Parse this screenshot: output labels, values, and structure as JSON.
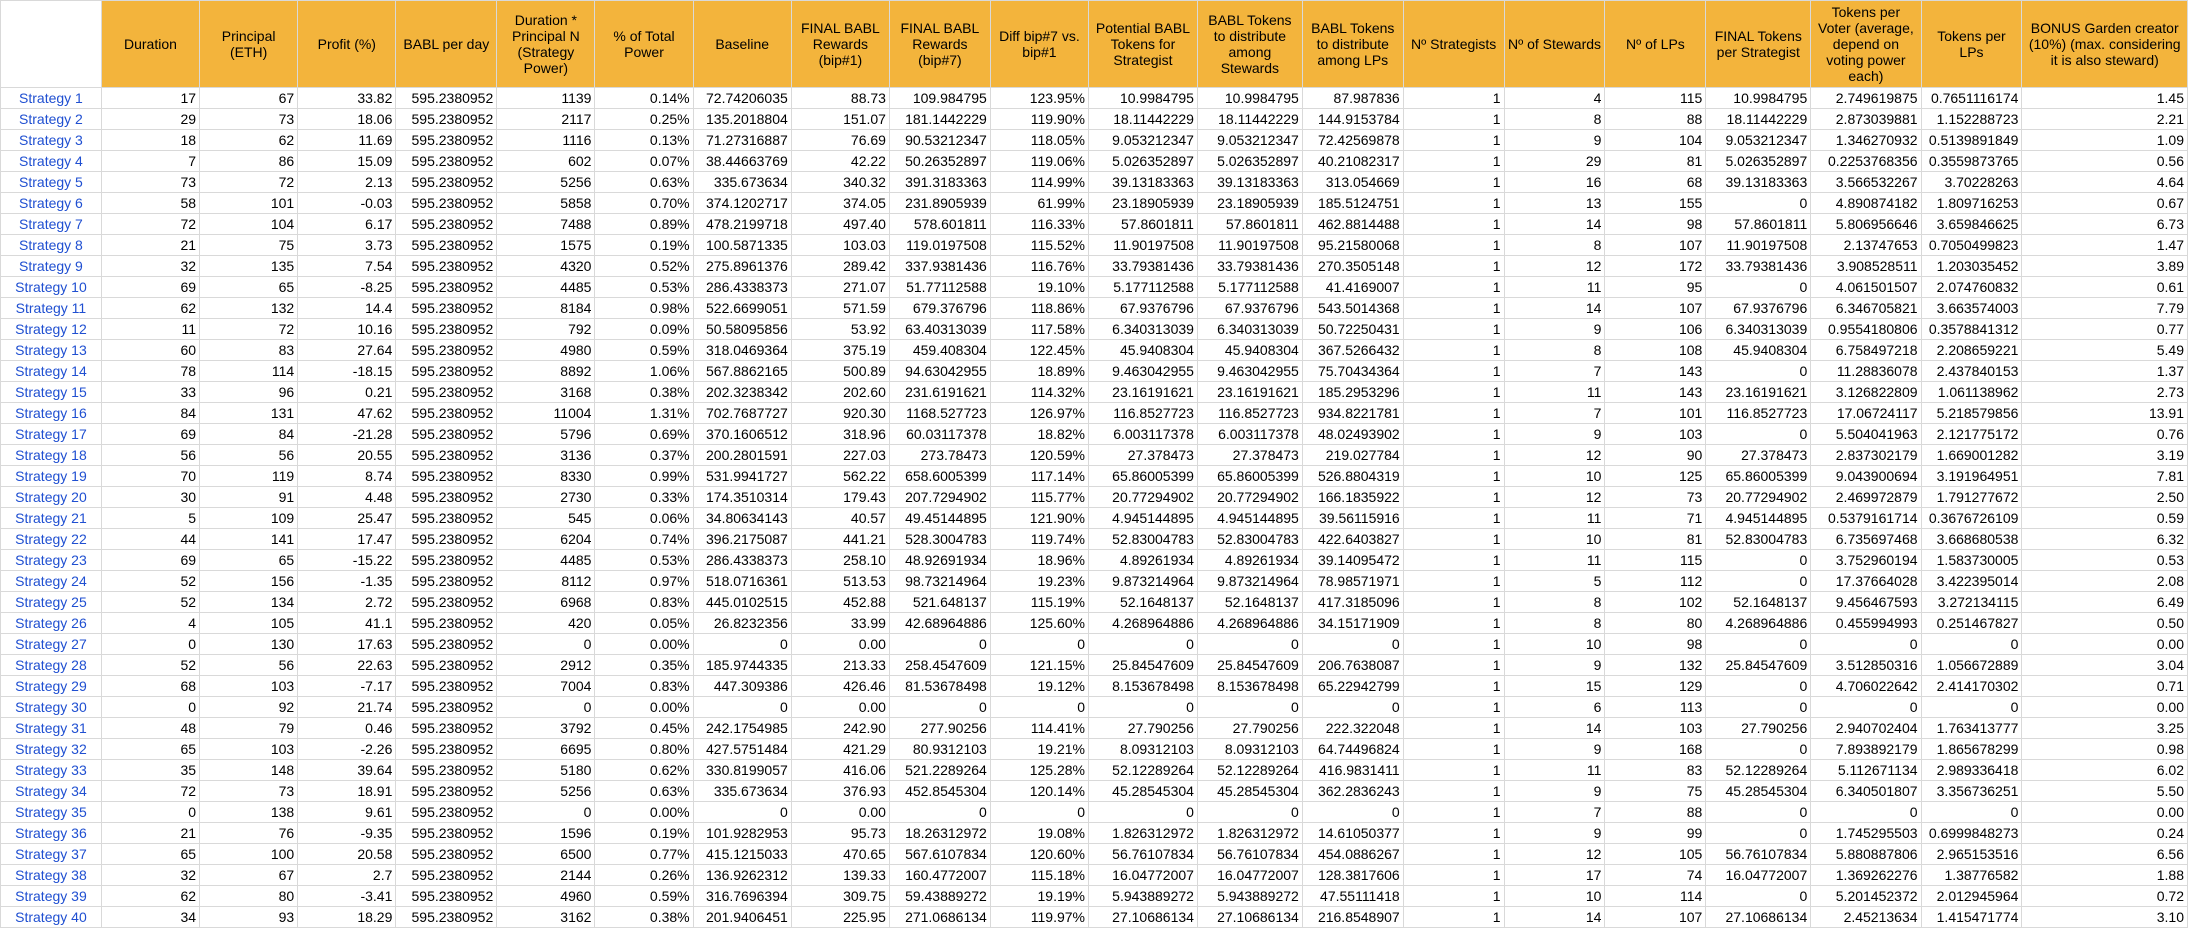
{
  "colors": {
    "header_bg": "#f3b43c",
    "link_text": "#1f4fd1",
    "grid": "#d9d9d9"
  },
  "headers": [
    "",
    "Duration",
    "Principal (ETH)",
    "Profit (%)",
    "BABL per day",
    "Duration * Principal N (Strategy Power)",
    "% of Total Power",
    "Baseline",
    "FINAL BABL Rewards (bip#1)",
    "FINAL BABL Rewards (bip#7)",
    "Diff bip#7 vs. bip#1",
    "Potential BABL Tokens for Strategist",
    "BABL Tokens to distribute among Stewards",
    "BABL Tokens to distribute among LPs",
    "Nº Strategists",
    "Nº of Stewards",
    "Nº of LPs",
    "FINAL Tokens per Strategist",
    "Tokens per Voter (average, depend on voting power each)",
    "Tokens per LPs",
    "BONUS Garden creator (10%) (max. considering it is also steward)"
  ],
  "rows": [
    [
      "Strategy 1",
      "17",
      "67",
      "33.82",
      "595.2380952",
      "1139",
      "0.14%",
      "72.74206035",
      "88.73",
      "109.984795",
      "123.95%",
      "10.9984795",
      "10.9984795",
      "87.987836",
      "1",
      "4",
      "115",
      "10.9984795",
      "2.749619875",
      "0.7651116174",
      "1.45"
    ],
    [
      "Strategy 2",
      "29",
      "73",
      "18.06",
      "595.2380952",
      "2117",
      "0.25%",
      "135.2018804",
      "151.07",
      "181.1442229",
      "119.90%",
      "18.11442229",
      "18.11442229",
      "144.9153784",
      "1",
      "8",
      "88",
      "18.11442229",
      "2.873039881",
      "1.152288723",
      "2.21"
    ],
    [
      "Strategy 3",
      "18",
      "62",
      "11.69",
      "595.2380952",
      "1116",
      "0.13%",
      "71.27316887",
      "76.69",
      "90.53212347",
      "118.05%",
      "9.053212347",
      "9.053212347",
      "72.42569878",
      "1",
      "9",
      "104",
      "9.053212347",
      "1.346270932",
      "0.5139891849",
      "1.09"
    ],
    [
      "Strategy 4",
      "7",
      "86",
      "15.09",
      "595.2380952",
      "602",
      "0.07%",
      "38.44663769",
      "42.22",
      "50.26352897",
      "119.06%",
      "5.026352897",
      "5.026352897",
      "40.21082317",
      "1",
      "29",
      "81",
      "5.026352897",
      "0.2253768356",
      "0.3559873765",
      "0.56"
    ],
    [
      "Strategy 5",
      "73",
      "72",
      "2.13",
      "595.2380952",
      "5256",
      "0.63%",
      "335.673634",
      "340.32",
      "391.3183363",
      "114.99%",
      "39.13183363",
      "39.13183363",
      "313.054669",
      "1",
      "16",
      "68",
      "39.13183363",
      "3.566532267",
      "3.70228263",
      "4.64"
    ],
    [
      "Strategy 6",
      "58",
      "101",
      "-0.03",
      "595.2380952",
      "5858",
      "0.70%",
      "374.1202717",
      "374.05",
      "231.8905939",
      "61.99%",
      "23.18905939",
      "23.18905939",
      "185.5124751",
      "1",
      "13",
      "155",
      "0",
      "4.890874182",
      "1.809716253",
      "0.67"
    ],
    [
      "Strategy 7",
      "72",
      "104",
      "6.17",
      "595.2380952",
      "7488",
      "0.89%",
      "478.2199718",
      "497.40",
      "578.601811",
      "116.33%",
      "57.8601811",
      "57.8601811",
      "462.8814488",
      "1",
      "14",
      "98",
      "57.8601811",
      "5.806956646",
      "3.659846625",
      "6.73"
    ],
    [
      "Strategy 8",
      "21",
      "75",
      "3.73",
      "595.2380952",
      "1575",
      "0.19%",
      "100.5871335",
      "103.03",
      "119.0197508",
      "115.52%",
      "11.90197508",
      "11.90197508",
      "95.21580068",
      "1",
      "8",
      "107",
      "11.90197508",
      "2.13747653",
      "0.7050499823",
      "1.47"
    ],
    [
      "Strategy 9",
      "32",
      "135",
      "7.54",
      "595.2380952",
      "4320",
      "0.52%",
      "275.8961376",
      "289.42",
      "337.9381436",
      "116.76%",
      "33.79381436",
      "33.79381436",
      "270.3505148",
      "1",
      "12",
      "172",
      "33.79381436",
      "3.908528511",
      "1.203035452",
      "3.89"
    ],
    [
      "Strategy 10",
      "69",
      "65",
      "-8.25",
      "595.2380952",
      "4485",
      "0.53%",
      "286.4338373",
      "271.07",
      "51.77112588",
      "19.10%",
      "5.177112588",
      "5.177112588",
      "41.4169007",
      "1",
      "11",
      "95",
      "0",
      "4.061501507",
      "2.074760832",
      "0.61"
    ],
    [
      "Strategy 11",
      "62",
      "132",
      "14.4",
      "595.2380952",
      "8184",
      "0.98%",
      "522.6699051",
      "571.59",
      "679.376796",
      "118.86%",
      "67.9376796",
      "67.9376796",
      "543.5014368",
      "1",
      "14",
      "107",
      "67.9376796",
      "6.346705821",
      "3.663574003",
      "7.79"
    ],
    [
      "Strategy 12",
      "11",
      "72",
      "10.16",
      "595.2380952",
      "792",
      "0.09%",
      "50.58095856",
      "53.92",
      "63.40313039",
      "117.58%",
      "6.340313039",
      "6.340313039",
      "50.72250431",
      "1",
      "9",
      "106",
      "6.340313039",
      "0.9554180806",
      "0.3578841312",
      "0.77"
    ],
    [
      "Strategy 13",
      "60",
      "83",
      "27.64",
      "595.2380952",
      "4980",
      "0.59%",
      "318.0469364",
      "375.19",
      "459.408304",
      "122.45%",
      "45.9408304",
      "45.9408304",
      "367.5266432",
      "1",
      "8",
      "108",
      "45.9408304",
      "6.758497218",
      "2.208659221",
      "5.49"
    ],
    [
      "Strategy 14",
      "78",
      "114",
      "-18.15",
      "595.2380952",
      "8892",
      "1.06%",
      "567.8862165",
      "500.89",
      "94.63042955",
      "18.89%",
      "9.463042955",
      "9.463042955",
      "75.70434364",
      "1",
      "7",
      "143",
      "0",
      "11.28836078",
      "2.437840153",
      "1.37"
    ],
    [
      "Strategy 15",
      "33",
      "96",
      "0.21",
      "595.2380952",
      "3168",
      "0.38%",
      "202.3238342",
      "202.60",
      "231.6191621",
      "114.32%",
      "23.16191621",
      "23.16191621",
      "185.2953296",
      "1",
      "11",
      "143",
      "23.16191621",
      "3.126822809",
      "1.061138962",
      "2.73"
    ],
    [
      "Strategy 16",
      "84",
      "131",
      "47.62",
      "595.2380952",
      "11004",
      "1.31%",
      "702.7687727",
      "920.30",
      "1168.527723",
      "126.97%",
      "116.8527723",
      "116.8527723",
      "934.8221781",
      "1",
      "7",
      "101",
      "116.8527723",
      "17.06724117",
      "5.218579856",
      "13.91"
    ],
    [
      "Strategy 17",
      "69",
      "84",
      "-21.28",
      "595.2380952",
      "5796",
      "0.69%",
      "370.1606512",
      "318.96",
      "60.03117378",
      "18.82%",
      "6.003117378",
      "6.003117378",
      "48.02493902",
      "1",
      "9",
      "103",
      "0",
      "5.504041963",
      "2.121775172",
      "0.76"
    ],
    [
      "Strategy 18",
      "56",
      "56",
      "20.55",
      "595.2380952",
      "3136",
      "0.37%",
      "200.2801591",
      "227.03",
      "273.78473",
      "120.59%",
      "27.378473",
      "27.378473",
      "219.027784",
      "1",
      "12",
      "90",
      "27.378473",
      "2.837302179",
      "1.669001282",
      "3.19"
    ],
    [
      "Strategy 19",
      "70",
      "119",
      "8.74",
      "595.2380952",
      "8330",
      "0.99%",
      "531.9941727",
      "562.22",
      "658.6005399",
      "117.14%",
      "65.86005399",
      "65.86005399",
      "526.8804319",
      "1",
      "10",
      "125",
      "65.86005399",
      "9.043900694",
      "3.191964951",
      "7.81"
    ],
    [
      "Strategy 20",
      "30",
      "91",
      "4.48",
      "595.2380952",
      "2730",
      "0.33%",
      "174.3510314",
      "179.43",
      "207.7294902",
      "115.77%",
      "20.77294902",
      "20.77294902",
      "166.1835922",
      "1",
      "12",
      "73",
      "20.77294902",
      "2.469972879",
      "1.791277672",
      "2.50"
    ],
    [
      "Strategy 21",
      "5",
      "109",
      "25.47",
      "595.2380952",
      "545",
      "0.06%",
      "34.80634143",
      "40.57",
      "49.45144895",
      "121.90%",
      "4.945144895",
      "4.945144895",
      "39.56115916",
      "1",
      "11",
      "71",
      "4.945144895",
      "0.5379161714",
      "0.3676726109",
      "0.59"
    ],
    [
      "Strategy 22",
      "44",
      "141",
      "17.47",
      "595.2380952",
      "6204",
      "0.74%",
      "396.2175087",
      "441.21",
      "528.3004783",
      "119.74%",
      "52.83004783",
      "52.83004783",
      "422.6403827",
      "1",
      "10",
      "81",
      "52.83004783",
      "6.735697468",
      "3.668680538",
      "6.32"
    ],
    [
      "Strategy 23",
      "69",
      "65",
      "-15.22",
      "595.2380952",
      "4485",
      "0.53%",
      "286.4338373",
      "258.10",
      "48.92691934",
      "18.96%",
      "4.89261934",
      "4.89261934",
      "39.14095472",
      "1",
      "11",
      "115",
      "0",
      "3.752960194",
      "1.583730005",
      "0.53"
    ],
    [
      "Strategy 24",
      "52",
      "156",
      "-1.35",
      "595.2380952",
      "8112",
      "0.97%",
      "518.0716361",
      "513.53",
      "98.73214964",
      "19.23%",
      "9.873214964",
      "9.873214964",
      "78.98571971",
      "1",
      "5",
      "112",
      "0",
      "17.37664028",
      "3.422395014",
      "2.08"
    ],
    [
      "Strategy 25",
      "52",
      "134",
      "2.72",
      "595.2380952",
      "6968",
      "0.83%",
      "445.0102515",
      "452.88",
      "521.648137",
      "115.19%",
      "52.1648137",
      "52.1648137",
      "417.3185096",
      "1",
      "8",
      "102",
      "52.1648137",
      "9.456467593",
      "3.272134115",
      "6.49"
    ],
    [
      "Strategy 26",
      "4",
      "105",
      "41.1",
      "595.2380952",
      "420",
      "0.05%",
      "26.8232356",
      "33.99",
      "42.68964886",
      "125.60%",
      "4.268964886",
      "4.268964886",
      "34.15171909",
      "1",
      "8",
      "80",
      "4.268964886",
      "0.455994993",
      "0.251467827",
      "0.50"
    ],
    [
      "Strategy 27",
      "0",
      "130",
      "17.63",
      "595.2380952",
      "0",
      "0.00%",
      "0",
      "0.00",
      "0",
      "0",
      "0",
      "0",
      "0",
      "1",
      "10",
      "98",
      "0",
      "0",
      "0",
      "0.00"
    ],
    [
      "Strategy 28",
      "52",
      "56",
      "22.63",
      "595.2380952",
      "2912",
      "0.35%",
      "185.9744335",
      "213.33",
      "258.4547609",
      "121.15%",
      "25.84547609",
      "25.84547609",
      "206.7638087",
      "1",
      "9",
      "132",
      "25.84547609",
      "3.512850316",
      "1.056672889",
      "3.04"
    ],
    [
      "Strategy 29",
      "68",
      "103",
      "-7.17",
      "595.2380952",
      "7004",
      "0.83%",
      "447.309386",
      "426.46",
      "81.53678498",
      "19.12%",
      "8.153678498",
      "8.153678498",
      "65.22942799",
      "1",
      "15",
      "129",
      "0",
      "4.706022642",
      "2.414170302",
      "0.71"
    ],
    [
      "Strategy 30",
      "0",
      "92",
      "21.74",
      "595.2380952",
      "0",
      "0.00%",
      "0",
      "0.00",
      "0",
      "0",
      "0",
      "0",
      "0",
      "1",
      "6",
      "113",
      "0",
      "0",
      "0",
      "0.00"
    ],
    [
      "Strategy 31",
      "48",
      "79",
      "0.46",
      "595.2380952",
      "3792",
      "0.45%",
      "242.1754985",
      "242.90",
      "277.90256",
      "114.41%",
      "27.790256",
      "27.790256",
      "222.322048",
      "1",
      "14",
      "103",
      "27.790256",
      "2.940702404",
      "1.763413777",
      "3.25"
    ],
    [
      "Strategy 32",
      "65",
      "103",
      "-2.26",
      "595.2380952",
      "6695",
      "0.80%",
      "427.5751484",
      "421.29",
      "80.9312103",
      "19.21%",
      "8.09312103",
      "8.09312103",
      "64.74496824",
      "1",
      "9",
      "168",
      "0",
      "7.893892179",
      "1.865678299",
      "0.98"
    ],
    [
      "Strategy 33",
      "35",
      "148",
      "39.64",
      "595.2380952",
      "5180",
      "0.62%",
      "330.8199057",
      "416.06",
      "521.2289264",
      "125.28%",
      "52.12289264",
      "52.12289264",
      "416.9831411",
      "1",
      "11",
      "83",
      "52.12289264",
      "5.112671134",
      "2.989336418",
      "6.02"
    ],
    [
      "Strategy 34",
      "72",
      "73",
      "18.91",
      "595.2380952",
      "5256",
      "0.63%",
      "335.673634",
      "376.93",
      "452.8545304",
      "120.14%",
      "45.28545304",
      "45.28545304",
      "362.2836243",
      "1",
      "9",
      "75",
      "45.28545304",
      "6.340501807",
      "3.356736251",
      "5.50"
    ],
    [
      "Strategy 35",
      "0",
      "138",
      "9.61",
      "595.2380952",
      "0",
      "0.00%",
      "0",
      "0.00",
      "0",
      "0",
      "0",
      "0",
      "0",
      "1",
      "7",
      "88",
      "0",
      "0",
      "0",
      "0.00"
    ],
    [
      "Strategy 36",
      "21",
      "76",
      "-9.35",
      "595.2380952",
      "1596",
      "0.19%",
      "101.9282953",
      "95.73",
      "18.26312972",
      "19.08%",
      "1.826312972",
      "1.826312972",
      "14.61050377",
      "1",
      "9",
      "99",
      "0",
      "1.745295503",
      "0.6999848273",
      "0.24"
    ],
    [
      "Strategy 37",
      "65",
      "100",
      "20.58",
      "595.2380952",
      "6500",
      "0.77%",
      "415.1215033",
      "470.65",
      "567.6107834",
      "120.60%",
      "56.76107834",
      "56.76107834",
      "454.0886267",
      "1",
      "12",
      "105",
      "56.76107834",
      "5.880887806",
      "2.965153516",
      "6.56"
    ],
    [
      "Strategy 38",
      "32",
      "67",
      "2.7",
      "595.2380952",
      "2144",
      "0.26%",
      "136.9262312",
      "139.33",
      "160.4772007",
      "115.18%",
      "16.04772007",
      "16.04772007",
      "128.3817606",
      "1",
      "17",
      "74",
      "16.04772007",
      "1.369262276",
      "1.38776582",
      "1.88"
    ],
    [
      "Strategy 39",
      "62",
      "80",
      "-3.41",
      "595.2380952",
      "4960",
      "0.59%",
      "316.7696394",
      "309.75",
      "59.43889272",
      "19.19%",
      "5.943889272",
      "5.943889272",
      "47.55111418",
      "1",
      "10",
      "114",
      "0",
      "5.201452372",
      "2.012945964",
      "0.72"
    ],
    [
      "Strategy 40",
      "34",
      "93",
      "18.29",
      "595.2380952",
      "3162",
      "0.38%",
      "201.9406451",
      "225.95",
      "271.0686134",
      "119.97%",
      "27.10686134",
      "27.10686134",
      "216.8548907",
      "1",
      "14",
      "107",
      "27.10686134",
      "2.45213634",
      "1.415471774",
      "3.10"
    ]
  ]
}
